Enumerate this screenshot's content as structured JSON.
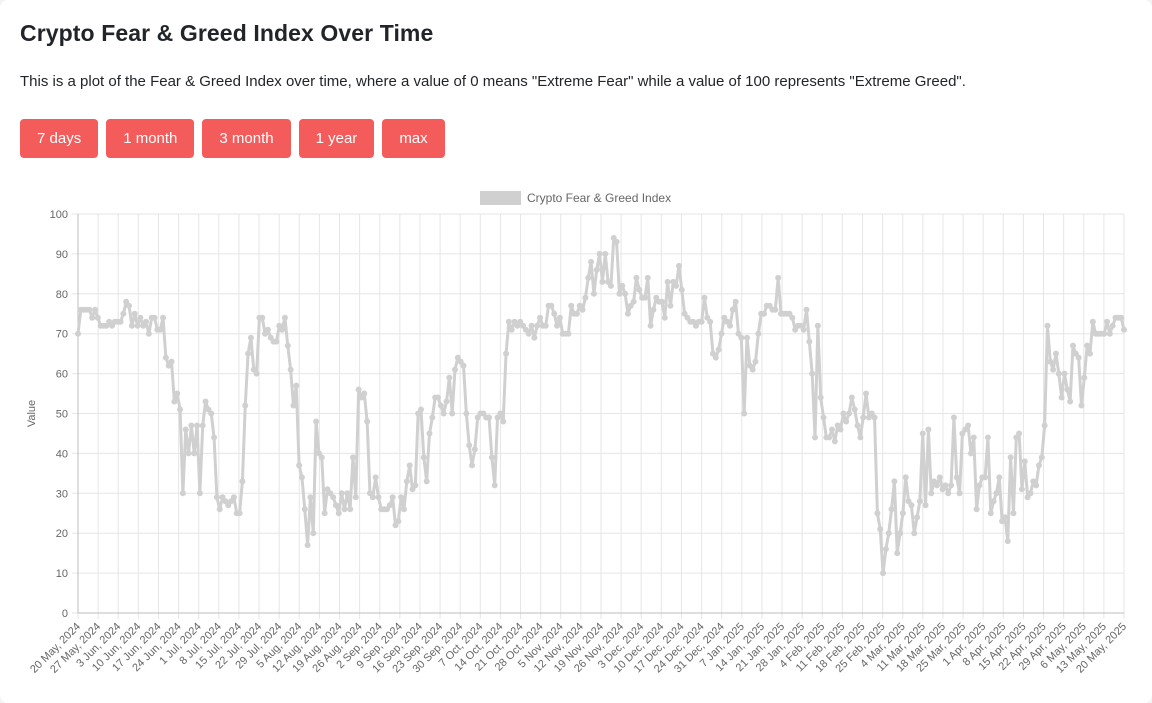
{
  "page": {
    "title": "Crypto Fear & Greed Index Over Time",
    "description": "This is a plot of the Fear & Greed Index over time, where a value of 0 means \"Extreme Fear\" while a value of 100 represents \"Extreme Greed\"."
  },
  "buttons": [
    "7 days",
    "1 month",
    "3 month",
    "1 year",
    "max"
  ],
  "colors": {
    "button": "#f45b5b",
    "series": "#d0d0d0",
    "grid": "#e6e6e6"
  },
  "chart_data": {
    "type": "line",
    "title": "",
    "xlabel": "",
    "ylabel": "Value",
    "ylim": [
      0,
      100
    ],
    "yticks": [
      0,
      10,
      20,
      30,
      40,
      50,
      60,
      70,
      80,
      90,
      100
    ],
    "grid": true,
    "legend_position": "top",
    "x_start": "2024-05-20",
    "x_end": "2025-05-20",
    "xtick_labels": [
      "20 May, 2024",
      "27 May, 2024",
      "3 Jun, 2024",
      "10 Jun, 2024",
      "17 Jun, 2024",
      "24 Jun, 2024",
      "1 Jul, 2024",
      "8 Jul, 2024",
      "15 Jul, 2024",
      "22 Jul, 2024",
      "29 Jul, 2024",
      "5 Aug, 2024",
      "12 Aug, 2024",
      "19 Aug, 2024",
      "26 Aug, 2024",
      "2 Sep, 2024",
      "9 Sep, 2024",
      "16 Sep, 2024",
      "23 Sep, 2024",
      "30 Sep, 2024",
      "7 Oct, 2024",
      "14 Oct, 2024",
      "21 Oct, 2024",
      "28 Oct, 2024",
      "5 Nov, 2024",
      "12 Nov, 2024",
      "19 Nov, 2024",
      "26 Nov, 2024",
      "3 Dec, 2024",
      "10 Dec, 2024",
      "17 Dec, 2024",
      "24 Dec, 2024",
      "31 Dec, 2024",
      "7 Jan, 2025",
      "14 Jan, 2025",
      "21 Jan, 2025",
      "28 Jan, 2025",
      "4 Feb, 2025",
      "11 Feb, 2025",
      "18 Feb, 2025",
      "25 Feb, 2025",
      "4 Mar, 2025",
      "11 Mar, 2025",
      "18 Mar, 2025",
      "25 Mar, 2025",
      "1 Apr, 2025",
      "8 Apr, 2025",
      "15 Apr, 2025",
      "22 Apr, 2025",
      "29 Apr, 2025",
      "6 May, 2025",
      "13 May, 2025",
      "20 May, 2025"
    ],
    "series": [
      {
        "name": "Crypto Fear & Greed Index",
        "values": [
          70,
          76,
          76,
          76,
          76,
          74,
          76,
          74,
          72,
          72,
          72,
          73,
          72,
          73,
          73,
          73,
          75,
          78,
          77,
          72,
          75,
          72,
          74,
          72,
          73,
          70,
          74,
          74,
          71,
          71,
          74,
          64,
          62,
          63,
          53,
          55,
          51,
          30,
          46,
          40,
          47,
          40,
          47,
          30,
          47,
          53,
          51,
          50,
          44,
          29,
          26,
          29,
          28,
          27,
          28,
          29,
          25,
          25,
          33,
          52,
          65,
          69,
          61,
          60,
          74,
          74,
          70,
          71,
          69,
          68,
          68,
          72,
          71,
          74,
          67,
          61,
          52,
          57,
          37,
          34,
          26,
          17,
          29,
          20,
          48,
          40,
          39,
          25,
          31,
          30,
          29,
          27,
          25,
          30,
          26,
          30,
          26,
          39,
          29,
          56,
          54,
          55,
          48,
          30,
          29,
          34,
          29,
          26,
          26,
          26,
          27,
          29,
          22,
          23,
          29,
          26,
          33,
          37,
          31,
          32,
          50,
          51,
          39,
          33,
          45,
          49,
          54,
          54,
          52,
          50,
          53,
          59,
          50,
          61,
          64,
          63,
          62,
          50,
          42,
          37,
          41,
          49,
          50,
          50,
          49,
          49,
          39,
          32,
          49,
          50,
          48,
          65,
          73,
          71,
          73,
          72,
          73,
          72,
          71,
          70,
          72,
          69,
          72,
          74,
          72,
          72,
          77,
          77,
          75,
          72,
          74,
          70,
          70,
          70,
          77,
          75,
          75,
          77,
          76,
          79,
          84,
          88,
          80,
          86,
          90,
          83,
          90,
          83,
          82,
          94,
          93,
          80,
          82,
          80,
          75,
          77,
          78,
          84,
          81,
          79,
          79,
          84,
          72,
          76,
          79,
          78,
          78,
          74,
          83,
          77,
          83,
          82,
          87,
          81,
          75,
          74,
          73,
          73,
          72,
          73,
          73,
          79,
          74,
          73,
          65,
          64,
          66,
          70,
          74,
          73,
          72,
          76,
          78,
          70,
          69,
          50,
          69,
          62,
          61,
          63,
          70,
          75,
          75,
          77,
          77,
          76,
          76,
          84,
          75,
          75,
          75,
          75,
          74,
          71,
          72,
          72,
          71,
          76,
          68,
          60,
          44,
          72,
          54,
          49,
          44,
          44,
          46,
          43,
          47,
          46,
          50,
          48,
          50,
          54,
          51,
          47,
          44,
          49,
          55,
          49,
          50,
          49,
          25,
          21,
          10,
          16,
          20,
          26,
          33,
          15,
          20,
          25,
          34,
          28,
          27,
          20,
          24,
          28,
          45,
          27,
          46,
          30,
          33,
          32,
          34,
          31,
          32,
          30,
          32,
          49,
          34,
          30,
          45,
          46,
          47,
          40,
          44,
          26,
          32,
          34,
          34,
          44,
          25,
          28,
          30,
          34,
          23,
          24,
          18,
          39,
          25,
          44,
          45,
          31,
          38,
          29,
          30,
          33,
          32,
          37,
          39,
          47,
          72,
          63,
          61,
          65,
          60,
          54,
          60,
          56,
          53,
          67,
          65,
          64,
          52,
          59,
          67,
          65,
          73,
          70,
          70,
          70,
          70,
          73,
          70,
          72,
          74,
          74,
          74,
          71
        ]
      }
    ]
  }
}
